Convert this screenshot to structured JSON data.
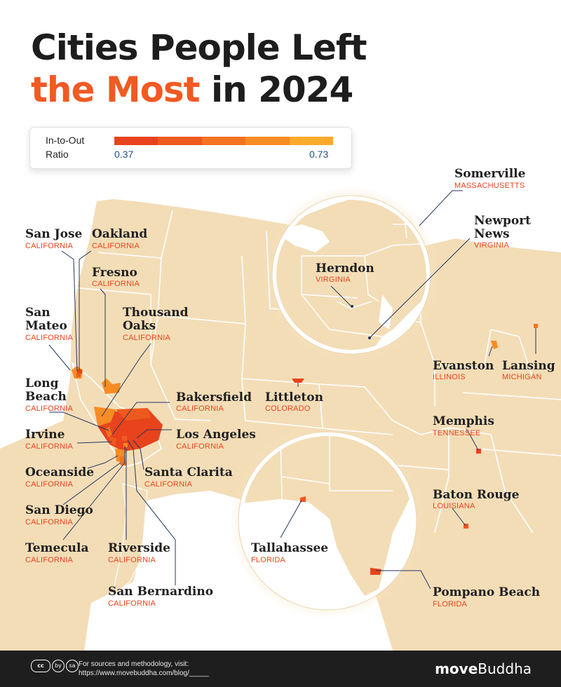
{
  "title": {
    "line1": "Cities People Left",
    "highlight": "the Most",
    "line2_rest": " in 2024"
  },
  "legend": {
    "label_line1": "In-to-Out",
    "label_line2": "Ratio",
    "min": "0.37",
    "max": "0.73",
    "colors": [
      "#e8431c",
      "#ee5a1e",
      "#f27320",
      "#f68c24",
      "#fbaa2c"
    ]
  },
  "colors": {
    "land": "#f3ddb7",
    "borders": "#ffffff",
    "accent": "#f05a23",
    "leader": "#23365c",
    "footer": "#1e1e1e"
  },
  "cities": [
    {
      "id": "san-jose",
      "name": "San Jose",
      "state": "CALIFORNIA"
    },
    {
      "id": "oakland",
      "name": "Oakland",
      "state": "CALIFORNIA"
    },
    {
      "id": "fresno",
      "name": "Fresno",
      "state": "CALIFORNIA"
    },
    {
      "id": "san-mateo",
      "name": "San Mateo",
      "state": "CALIFORNIA"
    },
    {
      "id": "thousand-oaks",
      "name": "Thousand Oaks",
      "state": "CALIFORNIA"
    },
    {
      "id": "long-beach",
      "name": "Long Beach",
      "state": "CALIFORNIA"
    },
    {
      "id": "bakersfield",
      "name": "Bakersfield",
      "state": "CALIFORNIA"
    },
    {
      "id": "irvine",
      "name": "Irvine",
      "state": "CALIFORNIA"
    },
    {
      "id": "los-angeles",
      "name": "Los Angeles",
      "state": "CALIFORNIA"
    },
    {
      "id": "oceanside",
      "name": "Oceanside",
      "state": "CALIFORNIA"
    },
    {
      "id": "santa-clarita",
      "name": "Santa Clarita",
      "state": "CALIFORNIA"
    },
    {
      "id": "san-diego",
      "name": "San Diego",
      "state": "CALIFORNIA"
    },
    {
      "id": "temecula",
      "name": "Temecula",
      "state": "CALIFORNIA"
    },
    {
      "id": "riverside",
      "name": "Riverside",
      "state": "CALIFORNIA"
    },
    {
      "id": "san-bernardino",
      "name": "San Bernardino",
      "state": "CALIFORNIA"
    },
    {
      "id": "littleton",
      "name": "Littleton",
      "state": "COLORADO"
    },
    {
      "id": "somerville",
      "name": "Somerville",
      "state": "MASSACHUSETTS"
    },
    {
      "id": "newport-news",
      "name": "Newport News",
      "state": "VIRGINIA"
    },
    {
      "id": "herndon",
      "name": "Herndon",
      "state": "VIRGINIA"
    },
    {
      "id": "evanston",
      "name": "Evanston",
      "state": "ILLINOIS"
    },
    {
      "id": "lansing",
      "name": "Lansing",
      "state": "MICHIGAN"
    },
    {
      "id": "memphis",
      "name": "Memphis",
      "state": "TENNESSEE"
    },
    {
      "id": "baton-rouge",
      "name": "Baton Rouge",
      "state": "LOUISIANA"
    },
    {
      "id": "tallahassee",
      "name": "Tallahassee",
      "state": "FLORIDA"
    },
    {
      "id": "pompano-beach",
      "name": "Pompano Beach",
      "state": "FLORIDA"
    }
  ],
  "footer": {
    "license_icons": [
      "cc",
      "by",
      "sa"
    ],
    "source_line1": "For sources and methodology, visit:",
    "source_line2": "https://www.movebuddha.com/blog/_____",
    "brand_bold": "move",
    "brand_regular": "Buddha"
  }
}
